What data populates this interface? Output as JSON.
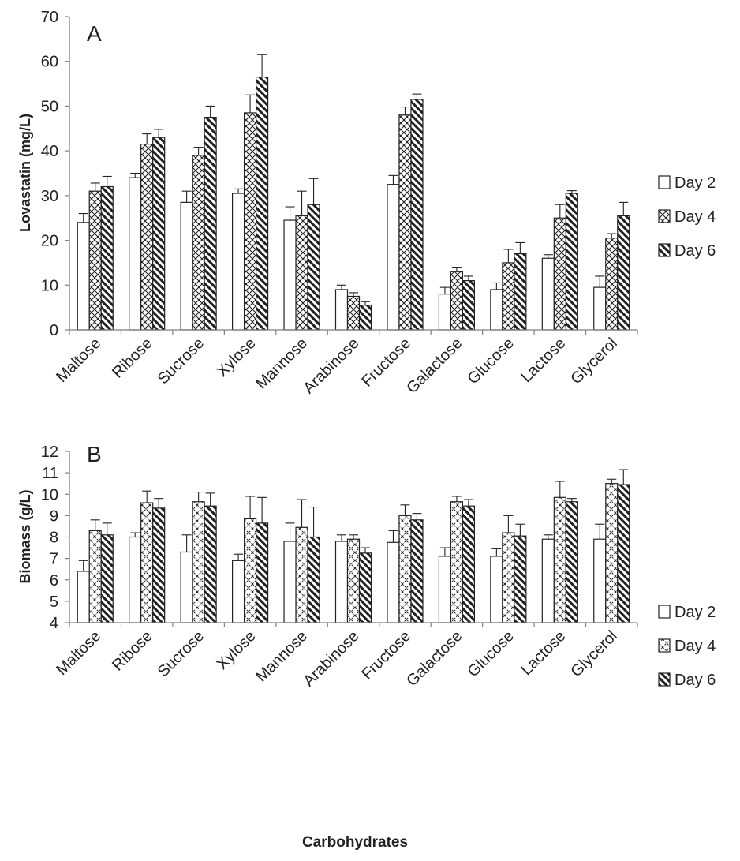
{
  "chart_data": [
    {
      "type": "bar",
      "panel_label": "A",
      "ylabel": "Lovastatin (mg/L)",
      "xlabel": "",
      "ylim": [
        0,
        70
      ],
      "yticks": [
        0,
        10,
        20,
        30,
        40,
        50,
        60,
        70
      ],
      "categories": [
        "Maltose",
        "Ribose",
        "Sucrose",
        "Xylose",
        "Mannose",
        "Arabinose",
        "Fructose",
        "Galactose",
        "Glucose",
        "Lactose",
        "Glycerol"
      ],
      "series": [
        {
          "name": "Day 2",
          "pattern": "none",
          "values": [
            24,
            34,
            28.5,
            30.5,
            24.5,
            9,
            32.5,
            8,
            9,
            16,
            9.5
          ],
          "errors": [
            2,
            1,
            2.5,
            1,
            3,
            1,
            2,
            1.5,
            1.5,
            0.8,
            2.5
          ]
        },
        {
          "name": "Day 4",
          "pattern": "crosshatch",
          "values": [
            31,
            41.5,
            39,
            48.5,
            25.5,
            7.5,
            48,
            13,
            15,
            25,
            20.5
          ],
          "errors": [
            1.8,
            2.3,
            1.8,
            4,
            5.5,
            0.8,
            1.8,
            1,
            3,
            3,
            1
          ]
        },
        {
          "name": "Day 6",
          "pattern": "diagonal",
          "values": [
            32,
            43,
            47.5,
            56.5,
            28,
            5.5,
            51.5,
            11,
            17,
            30.5,
            25.5
          ],
          "errors": [
            2.3,
            1.8,
            2.5,
            5,
            5.8,
            0.8,
            1.2,
            1,
            2.5,
            0.6,
            3
          ]
        }
      ],
      "legend_position": "right",
      "grid": false
    },
    {
      "type": "bar",
      "panel_label": "B",
      "ylabel": "Biomass (g/L)",
      "xlabel": "Carbohydrates",
      "ylim": [
        4,
        12
      ],
      "yticks": [
        4,
        5,
        6,
        7,
        8,
        9,
        10,
        11,
        12
      ],
      "categories": [
        "Maltose",
        "Ribose",
        "Sucrose",
        "Xylose",
        "Mannose",
        "Arabinose",
        "Fructose",
        "Galactose",
        "Glucose",
        "Lactose",
        "Glycerol"
      ],
      "series": [
        {
          "name": "Day 2",
          "pattern": "none",
          "values": [
            6.4,
            8,
            7.3,
            6.9,
            7.8,
            7.8,
            7.75,
            7.1,
            7.1,
            7.9,
            7.9
          ],
          "errors": [
            0.5,
            0.2,
            0.8,
            0.3,
            0.85,
            0.3,
            0.55,
            0.4,
            0.35,
            0.2,
            0.7
          ]
        },
        {
          "name": "Day 4",
          "pattern": "crosshatch-dashed",
          "values": [
            8.3,
            9.6,
            9.65,
            8.85,
            8.45,
            7.9,
            9,
            9.65,
            8.2,
            9.85,
            10.5
          ],
          "errors": [
            0.5,
            0.55,
            0.45,
            1.05,
            1.3,
            0.2,
            0.5,
            0.25,
            0.8,
            0.75,
            0.2
          ]
        },
        {
          "name": "Day 6",
          "pattern": "diagonal",
          "values": [
            8.1,
            9.35,
            9.45,
            8.65,
            8,
            7.25,
            8.8,
            9.45,
            8.05,
            9.65,
            10.45
          ],
          "errors": [
            0.55,
            0.45,
            0.6,
            1.2,
            1.4,
            0.25,
            0.3,
            0.3,
            0.55,
            0.15,
            0.7
          ]
        }
      ],
      "legend_position": "right",
      "grid": false
    }
  ],
  "colors": {
    "axis": "#7f7f7f",
    "bar_stroke": "#222222",
    "fill": "#ffffff"
  }
}
